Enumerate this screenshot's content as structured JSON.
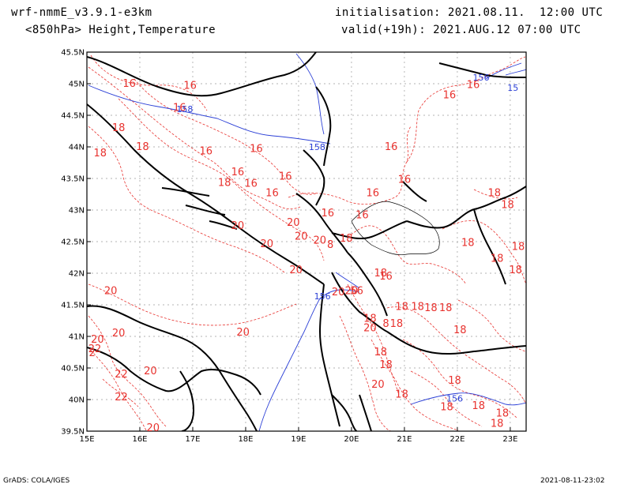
{
  "header": {
    "model": "wrf-nmmE_v3.9.1-e3km",
    "variables": "<850hPa> Height,Temperature",
    "initialisation": "initialisation: 2021.08.11.  12:00 UTC",
    "valid": "valid(+19h): 2021.AUG.12 07:00 UTC"
  },
  "footer": {
    "left": "GrADS: COLA/IGES",
    "right": "2021-08-11-23:02"
  },
  "map": {
    "lon_range": [
      15,
      23.3
    ],
    "lat_range": [
      39.5,
      45.5
    ],
    "lon_ticks": [
      "15E",
      "16E",
      "17E",
      "18E",
      "19E",
      "20E",
      "21E",
      "22E",
      "23E"
    ],
    "lat_ticks": [
      "45.5N",
      "45N",
      "44.5N",
      "44N",
      "43.5N",
      "43N",
      "42.5N",
      "42N",
      "41.5N",
      "41N",
      "40.5N",
      "40N",
      "39.5N"
    ],
    "colors": {
      "temperature": "#e8322e",
      "height": "#2b3fd6",
      "coast": "#000000",
      "grid": "#9a9a9a"
    },
    "temperature_labels": [
      {
        "text": "16",
        "lon": 15.8,
        "lat": 45.0
      },
      {
        "text": "16",
        "lon": 16.95,
        "lat": 44.97
      },
      {
        "text": "16",
        "lon": 16.75,
        "lat": 44.62
      },
      {
        "text": "18",
        "lon": 15.6,
        "lat": 44.3
      },
      {
        "text": "18",
        "lon": 15.25,
        "lat": 43.9
      },
      {
        "text": "18",
        "lon": 16.05,
        "lat": 44.0
      },
      {
        "text": "16",
        "lon": 17.25,
        "lat": 43.93
      },
      {
        "text": "16",
        "lon": 18.2,
        "lat": 43.97
      },
      {
        "text": "16",
        "lon": 17.85,
        "lat": 43.6
      },
      {
        "text": "18",
        "lon": 17.6,
        "lat": 43.43
      },
      {
        "text": "16",
        "lon": 18.1,
        "lat": 43.42
      },
      {
        "text": "16",
        "lon": 18.75,
        "lat": 43.53
      },
      {
        "text": "16",
        "lon": 18.5,
        "lat": 43.27
      },
      {
        "text": "16",
        "lon": 20.4,
        "lat": 43.27
      },
      {
        "text": "16",
        "lon": 20.75,
        "lat": 44.0
      },
      {
        "text": "16",
        "lon": 21.0,
        "lat": 43.48
      },
      {
        "text": "16",
        "lon": 21.85,
        "lat": 44.82
      },
      {
        "text": "16",
        "lon": 22.3,
        "lat": 44.98
      },
      {
        "text": "16",
        "lon": 19.55,
        "lat": 42.95
      },
      {
        "text": "16",
        "lon": 20.2,
        "lat": 42.92
      },
      {
        "text": "20",
        "lon": 17.85,
        "lat": 42.75
      },
      {
        "text": "20",
        "lon": 18.9,
        "lat": 42.8
      },
      {
        "text": "20",
        "lon": 18.4,
        "lat": 42.46
      },
      {
        "text": "20",
        "lon": 19.05,
        "lat": 42.58
      },
      {
        "text": "20",
        "lon": 19.4,
        "lat": 42.52
      },
      {
        "text": "8",
        "lon": 19.6,
        "lat": 42.45
      },
      {
        "text": "18",
        "lon": 19.9,
        "lat": 42.55
      },
      {
        "text": "18",
        "lon": 22.7,
        "lat": 43.27
      },
      {
        "text": "18",
        "lon": 22.95,
        "lat": 43.08
      },
      {
        "text": "18",
        "lon": 22.2,
        "lat": 42.48
      },
      {
        "text": "18",
        "lon": 22.75,
        "lat": 42.23
      },
      {
        "text": "18",
        "lon": 23.15,
        "lat": 42.42
      },
      {
        "text": "18",
        "lon": 23.1,
        "lat": 42.05
      },
      {
        "text": "16",
        "lon": 20.65,
        "lat": 41.95
      },
      {
        "text": "18",
        "lon": 20.55,
        "lat": 42.0
      },
      {
        "text": "20",
        "lon": 20.0,
        "lat": 41.72
      },
      {
        "text": "20",
        "lon": 19.75,
        "lat": 41.7
      },
      {
        "text": "56",
        "lon": 20.1,
        "lat": 41.72
      },
      {
        "text": "20",
        "lon": 18.95,
        "lat": 42.05
      },
      {
        "text": "20",
        "lon": 15.45,
        "lat": 41.72
      },
      {
        "text": "20",
        "lon": 15.6,
        "lat": 41.05
      },
      {
        "text": "20",
        "lon": 17.95,
        "lat": 41.06
      },
      {
        "text": "20",
        "lon": 15.2,
        "lat": 40.95
      },
      {
        "text": "22",
        "lon": 15.15,
        "lat": 40.8
      },
      {
        "text": "2",
        "lon": 15.1,
        "lat": 40.74
      },
      {
        "text": "22",
        "lon": 15.65,
        "lat": 40.4
      },
      {
        "text": "22",
        "lon": 15.65,
        "lat": 40.04
      },
      {
        "text": "20",
        "lon": 16.2,
        "lat": 40.45
      },
      {
        "text": "20",
        "lon": 16.25,
        "lat": 39.55
      },
      {
        "text": "18",
        "lon": 20.95,
        "lat": 41.47
      },
      {
        "text": "18",
        "lon": 21.25,
        "lat": 41.47
      },
      {
        "text": "18",
        "lon": 21.5,
        "lat": 41.45
      },
      {
        "text": "18",
        "lon": 21.78,
        "lat": 41.45
      },
      {
        "text": "8",
        "lon": 20.65,
        "lat": 41.2
      },
      {
        "text": "18",
        "lon": 20.85,
        "lat": 41.2
      },
      {
        "text": "18",
        "lon": 20.35,
        "lat": 41.28
      },
      {
        "text": "20",
        "lon": 20.35,
        "lat": 41.13
      },
      {
        "text": "18",
        "lon": 22.05,
        "lat": 41.1
      },
      {
        "text": "18",
        "lon": 20.55,
        "lat": 40.75
      },
      {
        "text": "18",
        "lon": 20.65,
        "lat": 40.55
      },
      {
        "text": "20",
        "lon": 20.5,
        "lat": 40.24
      },
      {
        "text": "18",
        "lon": 21.95,
        "lat": 40.3
      },
      {
        "text": "18",
        "lon": 20.95,
        "lat": 40.08
      },
      {
        "text": "18",
        "lon": 21.8,
        "lat": 39.88
      },
      {
        "text": "18",
        "lon": 22.4,
        "lat": 39.9
      },
      {
        "text": "18",
        "lon": 22.85,
        "lat": 39.78
      },
      {
        "text": "18",
        "lon": 22.75,
        "lat": 39.62
      }
    ],
    "height_labels": [
      {
        "text": "156",
        "lon": 22.45,
        "lat": 45.1
      },
      {
        "text": "15",
        "lon": 23.05,
        "lat": 44.94
      },
      {
        "text": "158",
        "lon": 16.85,
        "lat": 44.6
      },
      {
        "text": "158",
        "lon": 19.35,
        "lat": 44.0
      },
      {
        "text": "156",
        "lon": 19.45,
        "lat": 41.64
      },
      {
        "text": "156",
        "lon": 21.95,
        "lat": 40.02
      }
    ]
  }
}
